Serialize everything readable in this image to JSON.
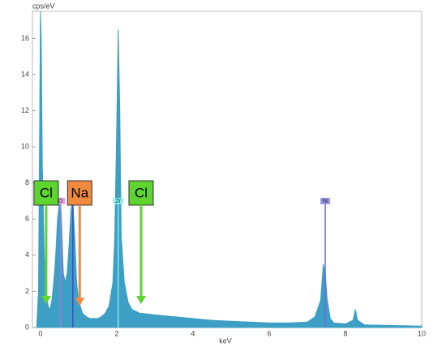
{
  "chart_data": {
    "type": "area",
    "y_label": "cps/eV",
    "x_label": "keV",
    "xlim": [
      -0.21,
      10
    ],
    "ylim": [
      0,
      17.5
    ],
    "xticks": [
      0,
      2,
      4,
      6,
      8,
      10
    ],
    "yticks": [
      0,
      2,
      4,
      6,
      8,
      10,
      12,
      14,
      16
    ],
    "grid": false,
    "color": "#3d9fc4",
    "x": [
      -0.1,
      -0.05,
      0,
      0.02,
      0.05,
      0.1,
      0.15,
      0.2,
      0.25,
      0.3,
      0.35,
      0.4,
      0.45,
      0.5,
      0.525,
      0.55,
      0.6,
      0.65,
      0.7,
      0.75,
      0.8,
      0.85,
      0.9,
      0.95,
      1.0,
      1.1,
      1.2,
      1.3,
      1.4,
      1.5,
      1.6,
      1.7,
      1.8,
      1.9,
      1.95,
      2.0,
      2.04,
      2.08,
      2.12,
      2.2,
      2.3,
      2.4,
      2.6,
      2.8,
      3.0,
      3.5,
      4.0,
      4.5,
      5.0,
      5.5,
      6.0,
      6.5,
      7.0,
      7.2,
      7.35,
      7.42,
      7.47,
      7.52,
      7.6,
      7.7,
      8.0,
      8.2,
      8.26,
      8.32,
      8.5,
      9.0,
      9.5,
      10.0
    ],
    "values": [
      0,
      2,
      17.5,
      16,
      9,
      4,
      2,
      1.2,
      1,
      1.5,
      2.5,
      4,
      6,
      7,
      7.2,
      6,
      3,
      2.5,
      3,
      4.5,
      6.5,
      7,
      5,
      2.5,
      1.5,
      0.8,
      0.6,
      0.5,
      0.5,
      0.5,
      0.6,
      0.8,
      1.2,
      2.5,
      5,
      11,
      16.5,
      12,
      5,
      2.5,
      1.4,
      1,
      0.8,
      0.75,
      0.7,
      0.6,
      0.5,
      0.4,
      0.35,
      0.3,
      0.25,
      0.25,
      0.3,
      0.6,
      1.5,
      3.5,
      3.0,
      1.6,
      0.5,
      0.25,
      0.2,
      0.4,
      1.0,
      0.4,
      0.15,
      0.12,
      0.1,
      0.08
    ],
    "element_lines": [
      {
        "label": "O",
        "x": 0.525,
        "height": 7,
        "color": "#9b7de0",
        "box": "#eaa4ea"
      },
      {
        "x": 0.85,
        "height": 7,
        "color": "#3a4fc4",
        "box": "#9a9ae6"
      },
      {
        "label": "Zr",
        "x": 2.04,
        "height": 7,
        "color": "#7fe6ee",
        "box": "#86ecf2"
      },
      {
        "label": "Ni",
        "x": 7.47,
        "height": 7,
        "color": "#6c6ce0",
        "box": "#9a9ae6"
      }
    ],
    "annotations": [
      {
        "label": "Cl",
        "x": 0.15,
        "arrow_to": 1.3,
        "color": "#5dd42f"
      },
      {
        "label": "Na",
        "x": 1.03,
        "arrow_to": 1.2,
        "color": "#f08a40"
      },
      {
        "label": "Cl",
        "x": 2.64,
        "arrow_to": 1.3,
        "color": "#5dd42f"
      }
    ]
  }
}
